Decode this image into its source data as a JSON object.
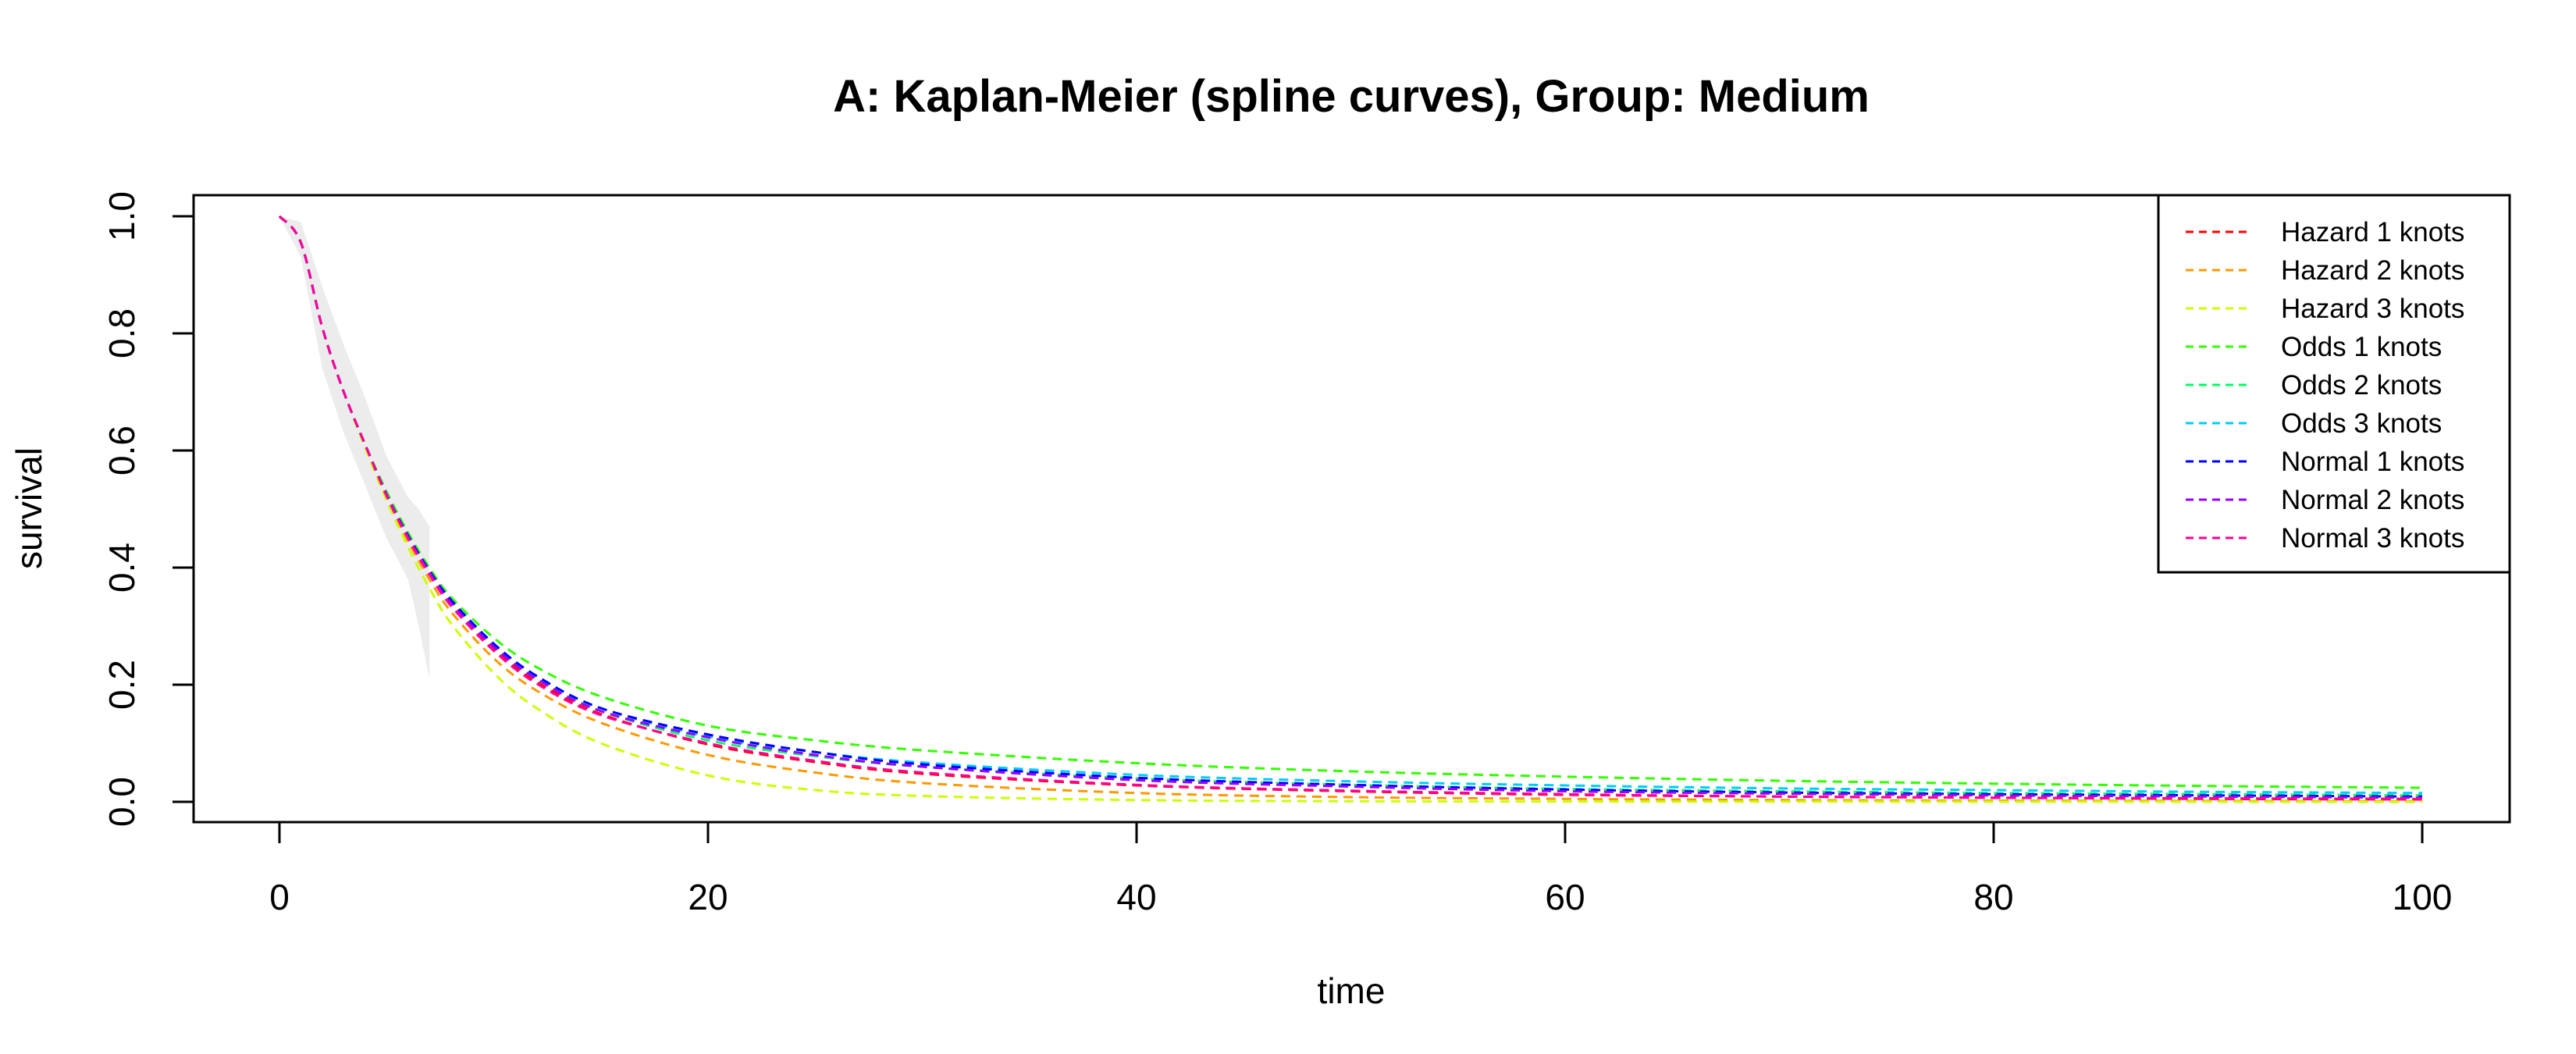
{
  "chart_data": {
    "type": "line",
    "title": "A: Kaplan-Meier (spline curves), Group: Medium",
    "xlabel": "time",
    "ylabel": "survival",
    "xlim": [
      0,
      100
    ],
    "ylim": [
      0,
      1.0
    ],
    "xticks": [
      "0",
      "20",
      "40",
      "60",
      "80",
      "100"
    ],
    "yticks": [
      "0.0",
      "0.2",
      "0.4",
      "0.6",
      "0.8",
      "1.0"
    ],
    "xtick_values": [
      0,
      20,
      40,
      60,
      80,
      100
    ],
    "ytick_values": [
      0.0,
      0.2,
      0.4,
      0.6,
      0.8,
      1.0
    ],
    "grid": false,
    "legend_position": "top-right",
    "line_style": "dashed",
    "km_band_color": "#ececec",
    "x": [
      0,
      1,
      2,
      3,
      4,
      5,
      6,
      7,
      8,
      10,
      12,
      15,
      20,
      25,
      30,
      40,
      50,
      60,
      70,
      80,
      90,
      100
    ],
    "series": [
      {
        "name": "Hazard 1 knots",
        "color": "#ff0000",
        "values": [
          1.0,
          0.955,
          0.81,
          0.7,
          0.61,
          0.525,
          0.45,
          0.39,
          0.335,
          0.26,
          0.205,
          0.15,
          0.098,
          0.068,
          0.048,
          0.028,
          0.018,
          0.012,
          0.009,
          0.007,
          0.005,
          0.004
        ]
      },
      {
        "name": "Hazard 2 knots",
        "color": "#ff9900",
        "values": [
          1.0,
          0.955,
          0.81,
          0.7,
          0.61,
          0.52,
          0.445,
          0.38,
          0.325,
          0.245,
          0.19,
          0.135,
          0.08,
          0.05,
          0.032,
          0.015,
          0.008,
          0.005,
          0.003,
          0.002,
          0.0015,
          0.001
        ]
      },
      {
        "name": "Hazard 3 knots",
        "color": "#ccff00",
        "values": [
          1.0,
          0.955,
          0.81,
          0.7,
          0.605,
          0.515,
          0.435,
          0.365,
          0.305,
          0.22,
          0.16,
          0.1,
          0.045,
          0.02,
          0.01,
          0.003,
          0.001,
          0.0005,
          0.0003,
          0.0002,
          0.0001,
          0.0
        ]
      },
      {
        "name": "Odds 1 knots",
        "color": "#33ff00",
        "values": [
          1.0,
          0.955,
          0.81,
          0.7,
          0.61,
          0.53,
          0.46,
          0.4,
          0.35,
          0.28,
          0.23,
          0.18,
          0.13,
          0.105,
          0.088,
          0.066,
          0.052,
          0.043,
          0.036,
          0.031,
          0.027,
          0.024
        ]
      },
      {
        "name": "Odds 2 knots",
        "color": "#00ff66",
        "values": [
          1.0,
          0.955,
          0.81,
          0.7,
          0.61,
          0.525,
          0.45,
          0.39,
          0.34,
          0.265,
          0.21,
          0.155,
          0.105,
          0.078,
          0.06,
          0.04,
          0.029,
          0.022,
          0.018,
          0.015,
          0.013,
          0.011
        ]
      },
      {
        "name": "Odds 3 knots",
        "color": "#00ccff",
        "values": [
          1.0,
          0.955,
          0.81,
          0.7,
          0.61,
          0.525,
          0.455,
          0.395,
          0.345,
          0.27,
          0.215,
          0.16,
          0.112,
          0.085,
          0.067,
          0.046,
          0.035,
          0.028,
          0.023,
          0.02,
          0.017,
          0.015
        ]
      },
      {
        "name": "Normal 1 knots",
        "color": "#0000ff",
        "values": [
          1.0,
          0.955,
          0.81,
          0.7,
          0.61,
          0.525,
          0.455,
          0.395,
          0.345,
          0.27,
          0.215,
          0.16,
          0.115,
          0.085,
          0.064,
          0.041,
          0.029,
          0.021,
          0.016,
          0.013,
          0.011,
          0.009
        ]
      },
      {
        "name": "Normal 2 knots",
        "color": "#9900ff",
        "values": [
          1.0,
          0.955,
          0.81,
          0.7,
          0.61,
          0.525,
          0.452,
          0.392,
          0.34,
          0.265,
          0.21,
          0.155,
          0.11,
          0.08,
          0.06,
          0.037,
          0.026,
          0.018,
          0.014,
          0.011,
          0.009,
          0.007
        ]
      },
      {
        "name": "Normal 3 knots",
        "color": "#ff0099",
        "values": [
          1.0,
          0.955,
          0.81,
          0.7,
          0.61,
          0.522,
          0.45,
          0.388,
          0.335,
          0.258,
          0.202,
          0.148,
          0.1,
          0.07,
          0.05,
          0.029,
          0.019,
          0.013,
          0.009,
          0.007,
          0.006,
          0.005
        ]
      }
    ],
    "km_band": {
      "x": [
        0,
        1,
        2,
        3,
        4,
        5,
        6,
        6.5,
        7
      ],
      "upper": [
        1.0,
        0.99,
        0.88,
        0.78,
        0.69,
        0.59,
        0.52,
        0.5,
        0.47
      ],
      "lower": [
        1.0,
        0.93,
        0.74,
        0.63,
        0.54,
        0.45,
        0.38,
        0.3,
        0.21
      ]
    }
  }
}
